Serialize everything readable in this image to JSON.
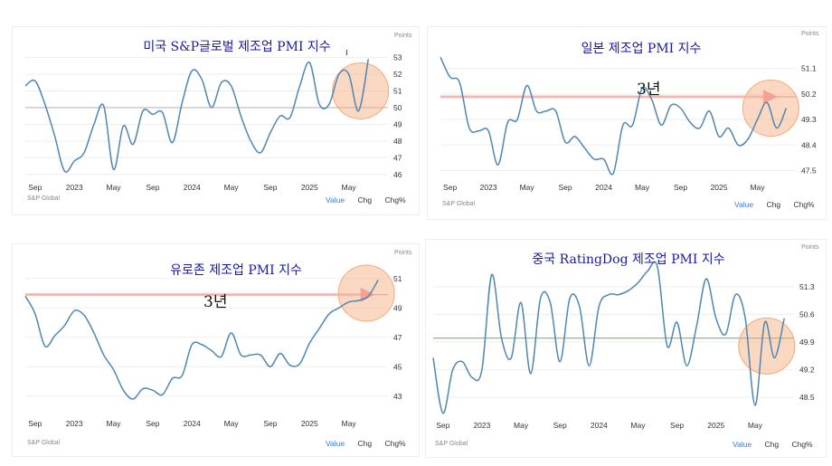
{
  "page": {
    "panel_ui": {
      "points_label": "Points",
      "source_label": "S&P Global",
      "buttons": [
        "Value",
        "Chg",
        "Chg%"
      ],
      "active_button": "Value"
    },
    "colors": {
      "line": "#4e86b4",
      "grid": "#eeeeee",
      "highlight": "#f6a878",
      "title": "#1a1aa0"
    }
  },
  "chart_data": [
    {
      "id": "us",
      "type": "line",
      "title": "미국 S&P글로벌 제조업 PMI 지수",
      "note": "",
      "xlabel": "",
      "ylabel": "",
      "yticks": [
        46,
        47,
        48,
        49,
        50,
        51,
        52,
        53
      ],
      "ylim": [
        45.5,
        53.3
      ],
      "xticks": [
        {
          "label": "Sep",
          "t": 0
        },
        {
          "label": "2023",
          "t": 4
        },
        {
          "label": "May",
          "t": 8
        },
        {
          "label": "Sep",
          "t": 12
        },
        {
          "label": "2024",
          "t": 16
        },
        {
          "label": "May",
          "t": 20
        },
        {
          "label": "Sep",
          "t": 24
        },
        {
          "label": "2025",
          "t": 28
        },
        {
          "label": "May",
          "t": 32
        }
      ],
      "tlim": [
        -1,
        36
      ],
      "values": [
        [
          -1,
          51.3
        ],
        [
          0,
          51.6
        ],
        [
          1,
          50.2
        ],
        [
          2,
          48.3
        ],
        [
          3,
          46.2
        ],
        [
          4,
          46.8
        ],
        [
          5,
          47.3
        ],
        [
          6,
          49.0
        ],
        [
          7,
          50.1
        ],
        [
          8,
          46.3
        ],
        [
          9,
          48.9
        ],
        [
          10,
          47.8
        ],
        [
          11,
          49.8
        ],
        [
          12,
          49.6
        ],
        [
          13,
          49.7
        ],
        [
          14,
          47.9
        ],
        [
          15,
          50.3
        ],
        [
          16,
          52.2
        ],
        [
          17,
          51.7
        ],
        [
          18,
          50.0
        ],
        [
          19,
          51.5
        ],
        [
          20,
          51.3
        ],
        [
          21,
          49.5
        ],
        [
          22,
          48.0
        ],
        [
          23,
          47.3
        ],
        [
          24,
          48.5
        ],
        [
          25,
          49.5
        ],
        [
          26,
          49.4
        ],
        [
          27,
          51.3
        ],
        [
          28,
          52.7
        ],
        [
          29,
          50.2
        ],
        [
          30,
          50.2
        ],
        [
          31,
          52.0
        ],
        [
          32,
          52.0
        ],
        [
          33,
          49.8
        ],
        [
          34,
          52.9
        ]
      ],
      "baseline": 50,
      "baseline_color": "#bbbbbb",
      "highlight_circle": {
        "t": 33.2,
        "v": 51.0
      },
      "arrow": null,
      "red_tick": {
        "t": 31.8,
        "v": 53.3
      }
    },
    {
      "id": "japan",
      "type": "line",
      "title": "일본 제조업 PMI 지수",
      "note": "3년",
      "xlabel": "",
      "ylabel": "",
      "yticks": [
        47.5,
        48.4,
        49.3,
        50.2,
        51.1
      ],
      "ylim": [
        47.1,
        51.6
      ],
      "xticks": [
        {
          "label": "Sep",
          "t": 0
        },
        {
          "label": "2023",
          "t": 4
        },
        {
          "label": "May",
          "t": 8
        },
        {
          "label": "Sep",
          "t": 12
        },
        {
          "label": "2024",
          "t": 16
        },
        {
          "label": "May",
          "t": 20
        },
        {
          "label": "Sep",
          "t": 24
        },
        {
          "label": "2025",
          "t": 28
        },
        {
          "label": "May",
          "t": 32
        }
      ],
      "tlim": [
        -1,
        36
      ],
      "values": [
        [
          -1,
          51.5
        ],
        [
          0,
          50.8
        ],
        [
          1,
          50.6
        ],
        [
          2,
          49.0
        ],
        [
          3,
          48.9
        ],
        [
          4,
          48.9
        ],
        [
          5,
          47.7
        ],
        [
          6,
          49.2
        ],
        [
          7,
          49.3
        ],
        [
          8,
          50.5
        ],
        [
          9,
          49.6
        ],
        [
          10,
          49.6
        ],
        [
          11,
          49.6
        ],
        [
          12,
          48.5
        ],
        [
          13,
          48.7
        ],
        [
          14,
          48.3
        ],
        [
          15,
          47.9
        ],
        [
          16,
          47.9
        ],
        [
          17,
          47.4
        ],
        [
          18,
          49.1
        ],
        [
          19,
          49.1
        ],
        [
          20,
          50.4
        ],
        [
          21,
          50.0
        ],
        [
          22,
          49.1
        ],
        [
          23,
          49.8
        ],
        [
          24,
          49.7
        ],
        [
          25,
          49.2
        ],
        [
          26,
          49.0
        ],
        [
          27,
          49.6
        ],
        [
          28,
          48.7
        ],
        [
          29,
          49.0
        ],
        [
          30,
          48.4
        ],
        [
          31,
          48.6
        ],
        [
          32,
          49.3
        ],
        [
          33,
          49.9
        ],
        [
          34,
          49.0
        ],
        [
          35,
          49.7
        ]
      ],
      "baseline": 50.1,
      "baseline_color": "#e8a8a0",
      "highlight_circle": {
        "t": 33.4,
        "v": 49.7
      },
      "arrow": {
        "from_t": -1,
        "to_t": 32.6,
        "v": 50.1
      },
      "red_tick": null
    },
    {
      "id": "eurozone",
      "type": "line",
      "title": "유로존 제조업 PMI 지수",
      "note": "3년",
      "xlabel": "",
      "ylabel": "",
      "yticks": [
        43,
        45,
        47,
        49,
        51
      ],
      "ylim": [
        42,
        51.6
      ],
      "xticks": [
        {
          "label": "Sep",
          "t": 0
        },
        {
          "label": "2023",
          "t": 4
        },
        {
          "label": "May",
          "t": 8
        },
        {
          "label": "Sep",
          "t": 12
        },
        {
          "label": "2024",
          "t": 16
        },
        {
          "label": "May",
          "t": 20
        },
        {
          "label": "Sep",
          "t": 24
        },
        {
          "label": "2025",
          "t": 28
        },
        {
          "label": "May",
          "t": 32
        }
      ],
      "tlim": [
        -1,
        36
      ],
      "values": [
        [
          -1,
          49.8
        ],
        [
          0,
          48.6
        ],
        [
          1,
          46.4
        ],
        [
          2,
          47.1
        ],
        [
          3,
          47.8
        ],
        [
          4,
          48.8
        ],
        [
          5,
          48.5
        ],
        [
          6,
          47.3
        ],
        [
          7,
          45.8
        ],
        [
          8,
          44.8
        ],
        [
          9,
          43.4
        ],
        [
          10,
          42.8
        ],
        [
          11,
          43.5
        ],
        [
          12,
          43.4
        ],
        [
          13,
          43.1
        ],
        [
          14,
          44.2
        ],
        [
          15,
          44.4
        ],
        [
          16,
          46.5
        ],
        [
          17,
          46.5
        ],
        [
          18,
          46.1
        ],
        [
          19,
          45.7
        ],
        [
          20,
          47.3
        ],
        [
          21,
          45.8
        ],
        [
          22,
          45.8
        ],
        [
          23,
          45.8
        ],
        [
          24,
          45.0
        ],
        [
          25,
          45.9
        ],
        [
          26,
          45.1
        ],
        [
          27,
          45.2
        ],
        [
          28,
          46.6
        ],
        [
          29,
          47.6
        ],
        [
          30,
          48.6
        ],
        [
          31,
          49.0
        ],
        [
          32,
          49.4
        ],
        [
          33,
          49.5
        ],
        [
          34,
          49.8
        ],
        [
          35,
          50.9
        ]
      ],
      "baseline": 49.9,
      "baseline_color": "#e8a8a0",
      "highlight_circle": {
        "t": 33.8,
        "v": 50.0
      },
      "arrow": {
        "from_t": -1,
        "to_t": 33.2,
        "v": 49.9
      },
      "red_tick": null
    },
    {
      "id": "china",
      "type": "line",
      "title": "중국 RatingDog 제조업 PMI 지수",
      "note": "",
      "xlabel": "",
      "ylabel": "",
      "yticks": [
        48.5,
        49.2,
        49.9,
        50.6,
        51.3
      ],
      "ylim": [
        48.0,
        51.8
      ],
      "xticks": [
        {
          "label": "Sep",
          "t": 0
        },
        {
          "label": "2023",
          "t": 4
        },
        {
          "label": "May",
          "t": 8
        },
        {
          "label": "Sep",
          "t": 12
        },
        {
          "label": "2024",
          "t": 16
        },
        {
          "label": "May",
          "t": 20
        },
        {
          "label": "Sep",
          "t": 24
        },
        {
          "label": "2025",
          "t": 28
        },
        {
          "label": "May",
          "t": 32
        }
      ],
      "tlim": [
        -1,
        36
      ],
      "values": [
        [
          -1,
          49.5
        ],
        [
          0,
          48.1
        ],
        [
          1,
          49.2
        ],
        [
          2,
          49.4
        ],
        [
          3,
          49.0
        ],
        [
          4,
          49.2
        ],
        [
          5,
          51.6
        ],
        [
          6,
          50.0
        ],
        [
          7,
          49.5
        ],
        [
          8,
          50.9
        ],
        [
          9,
          49.1
        ],
        [
          10,
          51.0
        ],
        [
          11,
          50.9
        ],
        [
          12,
          49.4
        ],
        [
          13,
          51.0
        ],
        [
          14,
          50.8
        ],
        [
          15,
          49.3
        ],
        [
          16,
          50.8
        ],
        [
          17,
          51.1
        ],
        [
          18,
          51.1
        ],
        [
          19,
          51.2
        ],
        [
          20,
          51.4
        ],
        [
          21,
          51.7
        ],
        [
          22,
          51.8
        ],
        [
          23,
          49.8
        ],
        [
          24,
          50.4
        ],
        [
          25,
          49.3
        ],
        [
          26,
          50.3
        ],
        [
          27,
          51.5
        ],
        [
          28,
          50.5
        ],
        [
          29,
          50.1
        ],
        [
          30,
          51.1
        ],
        [
          31,
          50.5
        ],
        [
          32,
          48.3
        ],
        [
          33,
          50.4
        ],
        [
          34,
          49.5
        ],
        [
          35,
          50.5
        ]
      ],
      "baseline": 50.0,
      "baseline_color": "#7fc27f",
      "highlight_circle": {
        "t": 33.2,
        "v": 49.8
      },
      "arrow": null,
      "red_tick": null
    }
  ]
}
